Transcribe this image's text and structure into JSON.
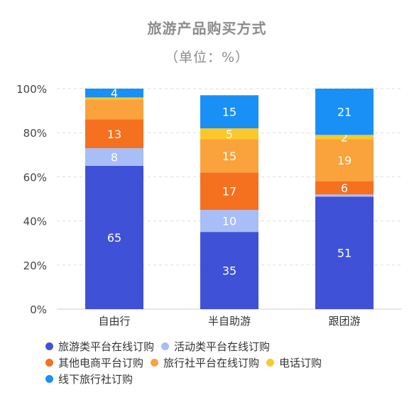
{
  "chart_data": {
    "type": "bar",
    "stacked": true,
    "title": "旅游产品购买方式",
    "subtitle": "（单位：%）",
    "categories": [
      "自由行",
      "半自助游",
      "跟团游"
    ],
    "ylim": [
      0,
      100
    ],
    "y_ticks": [
      "0%",
      "20%",
      "40%",
      "60%",
      "80%",
      "100%"
    ],
    "grid": true,
    "legend_position": "bottom",
    "series": [
      {
        "name": "旅游类平台在线订购",
        "color": "#3f51d6",
        "values": [
          65,
          35,
          51
        ],
        "labels": [
          "65",
          "35",
          "51"
        ]
      },
      {
        "name": "活动类平台在线订购",
        "color": "#a9bdf6",
        "values": [
          8,
          10,
          1
        ],
        "labels": [
          "8",
          "10",
          ""
        ]
      },
      {
        "name": "其他电商平台订购",
        "color": "#f5701f",
        "values": [
          13,
          17,
          6
        ],
        "labels": [
          "13",
          "17",
          "6"
        ]
      },
      {
        "name": "旅行社平台在线订购",
        "color": "#faa23b",
        "values": [
          9,
          15,
          19
        ],
        "labels": [
          "",
          "15",
          "19"
        ]
      },
      {
        "name": "电话订购",
        "color": "#fcc72a",
        "values": [
          1,
          5,
          2
        ],
        "labels": [
          "",
          "5",
          "2"
        ]
      },
      {
        "name": "线下旅行社订购",
        "color": "#1990f5",
        "values": [
          4,
          15,
          21
        ],
        "labels": [
          "4",
          "15",
          "21"
        ]
      }
    ]
  }
}
